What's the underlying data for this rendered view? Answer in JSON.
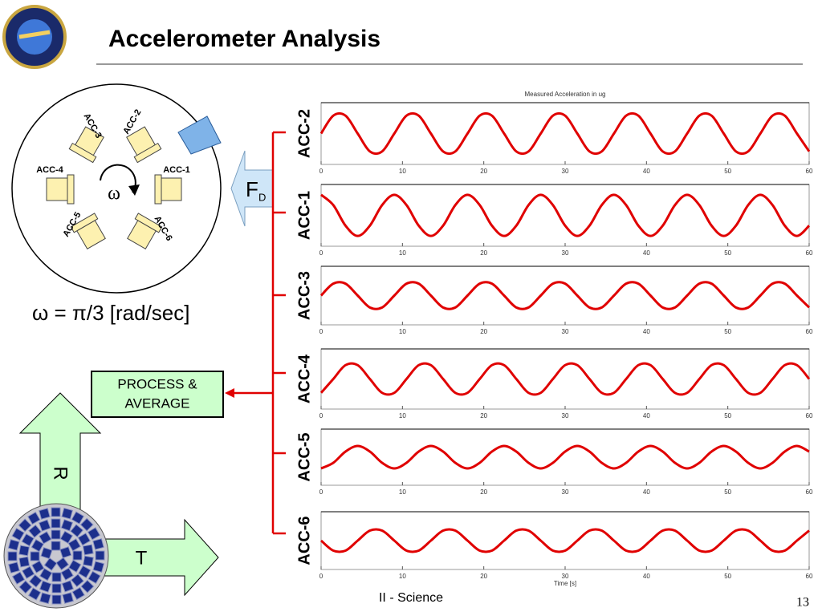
{
  "header": {
    "title": "Accelerometer Analysis"
  },
  "diagram": {
    "sensors": [
      "ACC-1",
      "ACC-2",
      "ACC-3",
      "ACC-4",
      "ACC-5",
      "ACC-6"
    ],
    "spin_symbol": "ω",
    "force": "F",
    "force_sub": "D",
    "rate": "ω = π/3  [rad/sec]",
    "process": [
      "PROCESS &",
      "AVERAGE"
    ],
    "r_label": "R",
    "t_label": "T"
  },
  "footer": {
    "section": "II - Science",
    "page": "13"
  },
  "chart_data": [
    {
      "type": "line",
      "title": "Measured Acceleration in ug",
      "ylabel": "ACC-2",
      "color": "#e00000",
      "xlim": [
        0,
        60
      ],
      "xticks": [
        0,
        10,
        20,
        30,
        40,
        50,
        60
      ],
      "ylim": [
        -1.5,
        1.5
      ],
      "x": [
        0,
        1.5,
        3,
        4.5,
        6,
        7.5,
        9,
        10.5,
        12,
        13.5,
        15,
        16.5,
        18,
        19.5,
        21,
        22.5,
        24,
        25.5,
        27,
        28.5,
        30,
        31.5,
        33,
        34.5,
        36,
        37.5,
        39,
        40.5,
        42,
        43.5,
        45,
        46.5,
        48,
        49.5,
        51,
        52.5,
        54,
        55.5,
        57,
        58.5,
        60
      ],
      "values": [
        0,
        0.87,
        0.87,
        0,
        -0.87,
        -0.87,
        0,
        0.87,
        0.87,
        0,
        -0.87,
        -0.87,
        0,
        0.87,
        0.87,
        0,
        -0.87,
        -0.87,
        0,
        0.87,
        0.87,
        0,
        -0.87,
        -0.87,
        0,
        0.87,
        0.87,
        0,
        -0.87,
        -0.87,
        0,
        0.87,
        0.87,
        0,
        -0.87,
        -0.87,
        0,
        0.87,
        0.87,
        0,
        -0.87
      ]
    },
    {
      "type": "line",
      "ylabel": "ACC-1",
      "color": "#e00000",
      "xlim": [
        0,
        60
      ],
      "xticks": [
        0,
        10,
        20,
        30,
        40,
        50,
        60
      ],
      "ylim": [
        -1.5,
        1.5
      ],
      "x": [
        0,
        1.5,
        3,
        4.5,
        6,
        7.5,
        9,
        10.5,
        12,
        13.5,
        15,
        16.5,
        18,
        19.5,
        21,
        22.5,
        24,
        25.5,
        27,
        28.5,
        30,
        31.5,
        33,
        34.5,
        36,
        37.5,
        39,
        40.5,
        42,
        43.5,
        45,
        46.5,
        48,
        49.5,
        51,
        52.5,
        54,
        55.5,
        57,
        58.5,
        60
      ],
      "values": [
        1,
        0.5,
        -0.5,
        -1,
        -0.5,
        0.5,
        1,
        0.5,
        -0.5,
        -1,
        -0.5,
        0.5,
        1,
        0.5,
        -0.5,
        -1,
        -0.5,
        0.5,
        1,
        0.5,
        -0.5,
        -1,
        -0.5,
        0.5,
        1,
        0.5,
        -0.5,
        -1,
        -0.5,
        0.5,
        1,
        0.5,
        -0.5,
        -1,
        -0.5,
        0.5,
        1,
        0.5,
        -0.5,
        -1,
        -0.5
      ]
    },
    {
      "type": "line",
      "ylabel": "ACC-3",
      "color": "#e00000",
      "xlim": [
        0,
        60
      ],
      "xticks": [
        0,
        10,
        20,
        30,
        40,
        50,
        60
      ],
      "ylim": [
        -1.5,
        1.5
      ],
      "x": [
        0,
        1.5,
        3,
        4.5,
        6,
        7.5,
        9,
        10.5,
        12,
        13.5,
        15,
        16.5,
        18,
        19.5,
        21,
        22.5,
        24,
        25.5,
        27,
        28.5,
        30,
        31.5,
        33,
        34.5,
        36,
        37.5,
        39,
        40.5,
        42,
        43.5,
        45,
        46.5,
        48,
        49.5,
        51,
        52.5,
        54,
        55.5,
        57,
        58.5,
        60
      ],
      "values": [
        0,
        0.61,
        0.61,
        0,
        -0.61,
        -0.61,
        0,
        0.61,
        0.61,
        0,
        -0.61,
        -0.61,
        0,
        0.61,
        0.61,
        0,
        -0.61,
        -0.61,
        0,
        0.61,
        0.61,
        0,
        -0.61,
        -0.61,
        0,
        0.61,
        0.61,
        0,
        -0.61,
        -0.61,
        0,
        0.61,
        0.61,
        0,
        -0.61,
        -0.61,
        0,
        0.61,
        0.61,
        0,
        -0.61
      ]
    },
    {
      "type": "line",
      "ylabel": "ACC-4",
      "color": "#e00000",
      "xlim": [
        0,
        60
      ],
      "xticks": [
        0,
        10,
        20,
        30,
        40,
        50,
        60
      ],
      "ylim": [
        -1.5,
        1.5
      ],
      "x": [
        0,
        1.5,
        3,
        4.5,
        6,
        7.5,
        9,
        10.5,
        12,
        13.5,
        15,
        16.5,
        18,
        19.5,
        21,
        22.5,
        24,
        25.5,
        27,
        28.5,
        30,
        31.5,
        33,
        34.5,
        36,
        37.5,
        39,
        40.5,
        42,
        43.5,
        45,
        46.5,
        48,
        49.5,
        51,
        52.5,
        54,
        55.5,
        57,
        58.5,
        60
      ],
      "values": [
        -0.69,
        0,
        0.69,
        0.69,
        0,
        -0.69,
        -0.69,
        0,
        0.69,
        0.69,
        0,
        -0.69,
        -0.69,
        0,
        0.69,
        0.69,
        0,
        -0.69,
        -0.69,
        0,
        0.69,
        0.69,
        0,
        -0.69,
        -0.69,
        0,
        0.69,
        0.69,
        0,
        -0.69,
        -0.69,
        0,
        0.69,
        0.69,
        0,
        -0.69,
        -0.69,
        0,
        0.69,
        0.69,
        0
      ]
    },
    {
      "type": "line",
      "ylabel": "ACC-5",
      "color": "#e00000",
      "xlim": [
        0,
        60
      ],
      "xticks": [
        0,
        10,
        20,
        30,
        40,
        50,
        60
      ],
      "ylim": [
        -1.5,
        1.5
      ],
      "x": [
        0,
        1.5,
        3,
        4.5,
        6,
        7.5,
        9,
        10.5,
        12,
        13.5,
        15,
        16.5,
        18,
        19.5,
        21,
        22.5,
        24,
        25.5,
        27,
        28.5,
        30,
        31.5,
        33,
        34.5,
        36,
        37.5,
        39,
        40.5,
        42,
        43.5,
        45,
        46.5,
        48,
        49.5,
        51,
        52.5,
        54,
        55.5,
        57,
        58.5,
        60
      ],
      "values": [
        -0.6,
        -0.3,
        0.3,
        0.6,
        0.3,
        -0.3,
        -0.6,
        -0.3,
        0.3,
        0.6,
        0.3,
        -0.3,
        -0.6,
        -0.3,
        0.3,
        0.6,
        0.3,
        -0.3,
        -0.6,
        -0.3,
        0.3,
        0.6,
        0.3,
        -0.3,
        -0.6,
        -0.3,
        0.3,
        0.6,
        0.3,
        -0.3,
        -0.6,
        -0.3,
        0.3,
        0.6,
        0.3,
        -0.3,
        -0.6,
        -0.3,
        0.3,
        0.6,
        0.3
      ]
    },
    {
      "type": "line",
      "ylabel": "ACC-6",
      "xlabel": "Time [s]",
      "color": "#e00000",
      "xlim": [
        0,
        60
      ],
      "xticks": [
        0,
        10,
        20,
        30,
        40,
        50,
        60
      ],
      "ylim": [
        -1.5,
        1.5
      ],
      "x": [
        0,
        1.5,
        3,
        4.5,
        6,
        7.5,
        9,
        10.5,
        12,
        13.5,
        15,
        16.5,
        18,
        19.5,
        21,
        22.5,
        24,
        25.5,
        27,
        28.5,
        30,
        31.5,
        33,
        34.5,
        36,
        37.5,
        39,
        40.5,
        42,
        43.5,
        45,
        46.5,
        48,
        49.5,
        51,
        52.5,
        54,
        55.5,
        57,
        58.5,
        60
      ],
      "values": [
        0,
        -0.52,
        -0.52,
        0,
        0.52,
        0.52,
        0,
        -0.52,
        -0.52,
        0,
        0.52,
        0.52,
        0,
        -0.52,
        -0.52,
        0,
        0.52,
        0.52,
        0,
        -0.52,
        -0.52,
        0,
        0.52,
        0.52,
        0,
        -0.52,
        -0.52,
        0,
        0.52,
        0.52,
        0,
        -0.52,
        -0.52,
        0,
        0.52,
        0.52,
        0,
        -0.52,
        -0.52,
        0,
        0.52
      ]
    }
  ]
}
